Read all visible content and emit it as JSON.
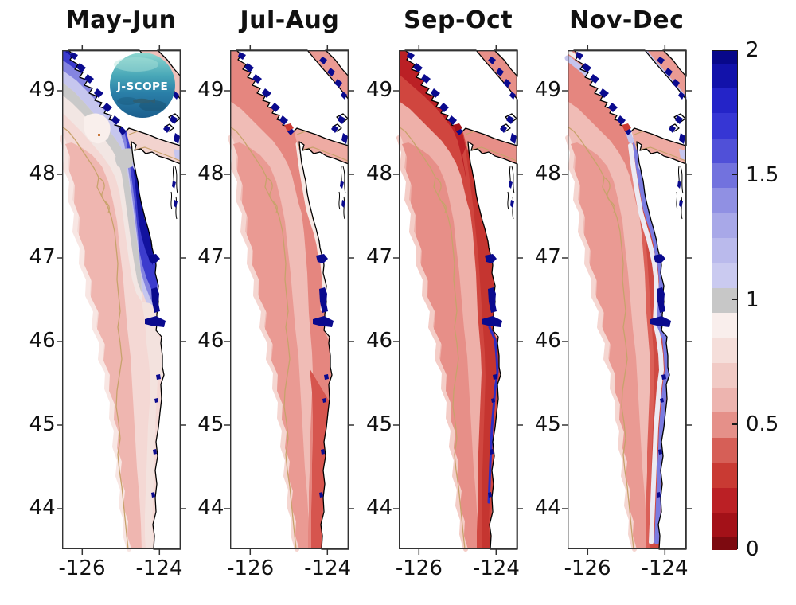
{
  "figure": {
    "background": "#ffffff",
    "titles": [
      "May-Jun",
      "Jul-Aug",
      "Sep-Oct",
      "Nov-Dec"
    ],
    "y_tick_labels": [
      "49",
      "48",
      "47",
      "46",
      "45",
      "44"
    ],
    "x_tick_labels": [
      "-126",
      "-124"
    ],
    "logo": {
      "text": "J-SCOPE"
    },
    "colorbar": {
      "tick_labels": [
        "2",
        "1.5",
        "1",
        "0.5",
        "0"
      ],
      "tick_values": [
        2,
        1.5,
        1,
        0.5,
        0
      ],
      "min": 0,
      "max": 2,
      "band_boundaries": [
        2,
        1.95,
        1.85,
        1.75,
        1.65,
        1.55,
        1.45,
        1.35,
        1.25,
        1.15,
        1.05,
        0.95,
        0.85,
        0.75,
        0.65,
        0.55,
        0.45,
        0.35,
        0.25,
        0.15,
        0.05,
        0
      ],
      "band_colors": [
        "#08088a",
        "#1212aa",
        "#2424c8",
        "#3636d4",
        "#5050d8",
        "#7272de",
        "#9090e3",
        "#a8a8e8",
        "#babaec",
        "#cacaf0",
        "#c7c7c7",
        "#f9eeec",
        "#f5deda",
        "#f1cac5",
        "#edb4af",
        "#e59089",
        "#d65f57",
        "#c93a33",
        "#bb2025",
        "#a31118",
        "#7d0a10"
      ]
    }
  },
  "panels": [
    {
      "title": "May-Jun",
      "logo": true,
      "layers": {
        "base": "#f4d8d4",
        "rim": "#f8e6e3",
        "mid": "#efb6b0",
        "pale_ring": "#f2e6e3",
        "grayzone": "#c9c9c9",
        "blue_outer": "#c6c6ee",
        "blue_mid": "#8484e0",
        "blue_inner": "#3c3ccd",
        "blue_shore": "#12129e",
        "coast_light": "#f3e2de",
        "strait": "#f2d3ce",
        "strait_gray": "#c9c9c9",
        "strait_accent": "#c3c3ef",
        "admiralty": "#c6c6ee",
        "georgia": "#efc0ba",
        "pale_core": "#f9efec",
        "pale_dot": "#c97a3e",
        "estuary": "#0a0a8e",
        "contour": "#c8a26c"
      }
    },
    {
      "title": "Jul-Aug",
      "logo": false,
      "layers": {
        "base": "#f0bcb6",
        "rim": "#f5d6d1",
        "mid": "#ea9a93",
        "north": "#e5867f",
        "coast_band": "#e5867f",
        "coast_core_south": "#d6554e",
        "coast_light_n": "#f6e8e4",
        "strait": "#eeaba3",
        "georgia": "#ea9a93",
        "red_dot": "#cc3b34",
        "estuary": "#0a0a8e",
        "contour": "#c8a26c"
      }
    },
    {
      "title": "Sep-Oct",
      "logo": false,
      "layers": {
        "base": "#eeb0a9",
        "rim": "#f4cdc7",
        "mid": "#e78f88",
        "north": "#d0463f",
        "north_core": "#bb2025",
        "coast_band": "#d0463f",
        "coast_core": "#c53530",
        "coast_navy_thin": "#2d2dc4",
        "strait": "#e78f88",
        "georgia": "#e78f88",
        "red_dot": "#a51118",
        "estuary": "#0a0a8e",
        "contour": "#c8a26c"
      }
    },
    {
      "title": "Nov-Dec",
      "logo": false,
      "layers": {
        "base": "#f0bcb6",
        "rim": "#f5d6d1",
        "mid": "#ea9a93",
        "north": "#e5867f",
        "coast_band": "#db6058",
        "coast_core": "#cf4a43",
        "vi_lavender": "#c4c4ed",
        "vi_white": "#f1ebe9",
        "coast_white": "#eceaf2",
        "coast_blue": "#7b7be0",
        "strait": "#eeaba3",
        "strait_accent": "#ccccf1",
        "admiralty": "#c6c6ee",
        "georgia": "#ea9a93",
        "georgia_accent": "#c4c4ed",
        "red_dot": "#cc3b34",
        "estuary": "#0a0a8e",
        "contour": "#c8a26c"
      }
    }
  ],
  "chart_data": {
    "type": "heatmap",
    "subtype": "geographic-map-small-multiples",
    "panels": [
      "May-Jun",
      "Jul-Aug",
      "Sep-Oct",
      "Nov-Dec"
    ],
    "x": {
      "ticks": [
        -126,
        -124
      ],
      "range": [
        -126.5,
        -123.45
      ]
    },
    "y": {
      "ticks": [
        49,
        48,
        47,
        46,
        45,
        44
      ],
      "range": [
        43.5,
        49.5
      ]
    },
    "colorbar": {
      "range": [
        0,
        2
      ],
      "ticks": [
        0,
        0.5,
        1,
        1.5,
        2
      ],
      "gray_center": 1.0,
      "colors_low_to_high": "dark red -> red -> pink -> gray(1) -> lavender -> blue -> navy"
    },
    "legend_position": "right",
    "grid": false,
    "annotations": [
      "J-SCOPE logo circle on first panel"
    ],
    "panel_patterns": [
      "Wide band of values 1.2-2 (blue) along Vancouver Island and Washington coast, gray ~1 transition, 0.5-0.9 pink offshore, estuaries ~2 (navy)",
      "Values 0.5-0.8 (pink) across shelf, narrow ~0.9 light strip at northern coastline, 0.4-0.6 core in south, estuaries ~2 (navy)",
      "Lowest values: 0.2-0.5 (dark red) along Vancouver Island coast and coastal band full length, thin >1.5 strip at southern shoreline, estuaries ~2 (navy)",
      "0.4-0.6 (red) coastal band with narrow >1.5 (blue) strip right at the shoreline along its full length, pink offshore, estuaries ~2 (navy)"
    ]
  }
}
